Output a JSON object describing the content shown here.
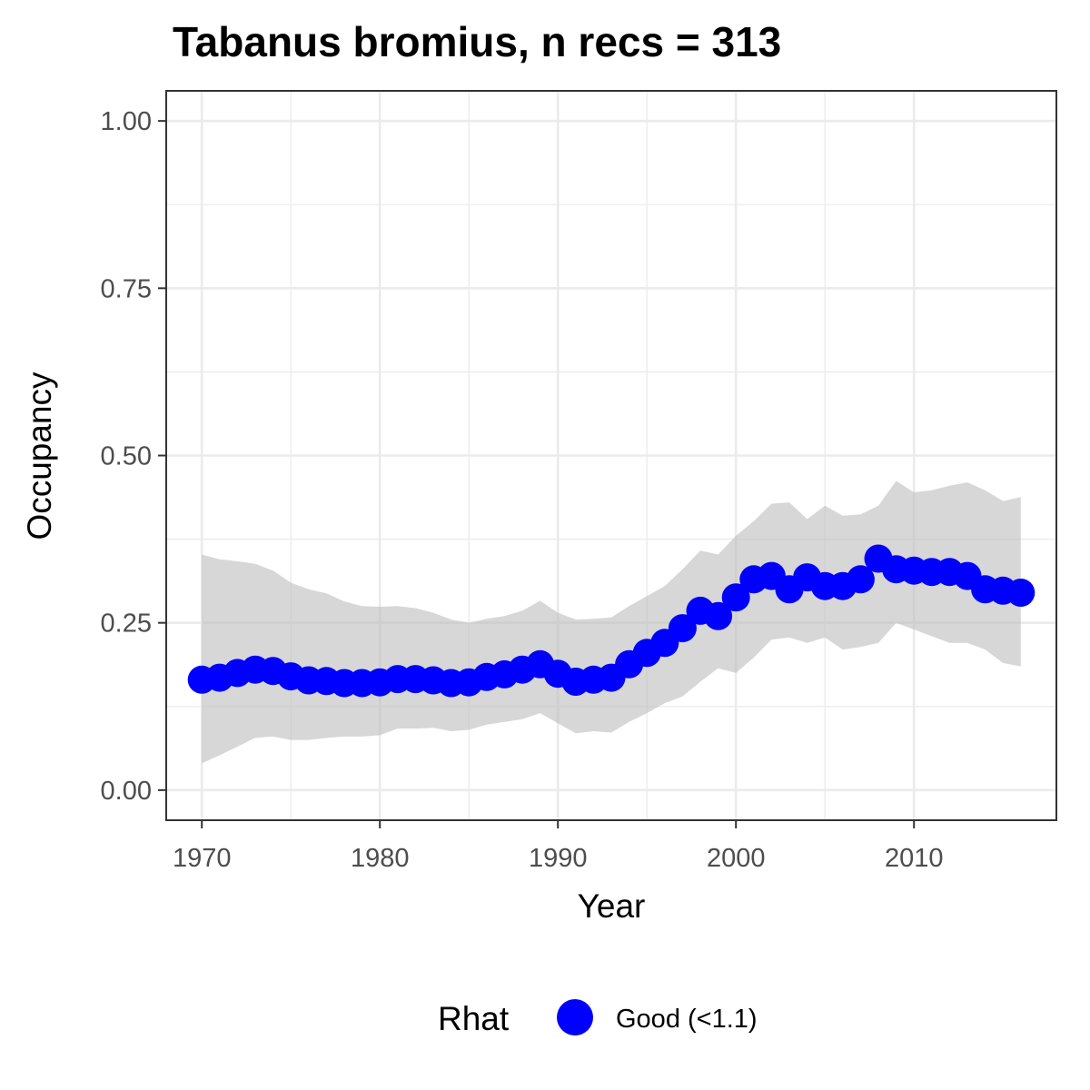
{
  "chart_data": {
    "type": "line",
    "title": "Tabanus bromius, n recs = 313",
    "xlabel": "Year",
    "ylabel": "Occupancy",
    "xlim": [
      1968,
      2018
    ],
    "ylim": [
      -0.045,
      1.045
    ],
    "x_ticks": [
      1970,
      1980,
      1990,
      2000,
      2010
    ],
    "x_tick_labels": [
      "1970",
      "1980",
      "1990",
      "2000",
      "2010"
    ],
    "y_ticks": [
      0,
      0.25,
      0.5,
      0.75,
      1
    ],
    "y_tick_labels": [
      "0.00",
      "0.25",
      "0.50",
      "0.75",
      "1.00"
    ],
    "grid": true,
    "legend": {
      "placement": "bottom",
      "title": "Rhat",
      "entries": [
        {
          "label": "Good (<1.1)",
          "color": "#0000ff"
        }
      ]
    },
    "colors": {
      "points": "#0000ff",
      "ribbon": "#bebebe",
      "grid": "#ebebeb",
      "panel_border": "#333333"
    },
    "x": [
      1970,
      1971,
      1972,
      1973,
      1974,
      1975,
      1976,
      1977,
      1978,
      1979,
      1980,
      1981,
      1982,
      1983,
      1984,
      1985,
      1986,
      1987,
      1988,
      1989,
      1990,
      1991,
      1992,
      1993,
      1994,
      1995,
      1996,
      1997,
      1998,
      1999,
      2000,
      2001,
      2002,
      2003,
      2004,
      2005,
      2006,
      2007,
      2008,
      2009,
      2010,
      2011,
      2012,
      2013,
      2014,
      2015,
      2016
    ],
    "series": [
      {
        "values": [
          0.165,
          0.168,
          0.175,
          0.18,
          0.178,
          0.17,
          0.164,
          0.163,
          0.16,
          0.16,
          0.161,
          0.166,
          0.166,
          0.164,
          0.16,
          0.161,
          0.169,
          0.173,
          0.18,
          0.188,
          0.174,
          0.162,
          0.165,
          0.168,
          0.188,
          0.205,
          0.22,
          0.242,
          0.268,
          0.26,
          0.288,
          0.315,
          0.32,
          0.3,
          0.318,
          0.305,
          0.305,
          0.315,
          0.346,
          0.33,
          0.328,
          0.326,
          0.326,
          0.32,
          0.3,
          0.298,
          0.295
        ],
        "lower": [
          0.04,
          0.052,
          0.065,
          0.078,
          0.08,
          0.075,
          0.075,
          0.078,
          0.08,
          0.08,
          0.082,
          0.092,
          0.092,
          0.093,
          0.088,
          0.09,
          0.098,
          0.102,
          0.106,
          0.115,
          0.1,
          0.085,
          0.088,
          0.086,
          0.102,
          0.115,
          0.13,
          0.14,
          0.162,
          0.182,
          0.175,
          0.198,
          0.225,
          0.228,
          0.22,
          0.228,
          0.21,
          0.214,
          0.22,
          0.25,
          0.24,
          0.23,
          0.22,
          0.22,
          0.21,
          0.19,
          0.185
        ],
        "upper": [
          0.352,
          0.345,
          0.342,
          0.338,
          0.328,
          0.31,
          0.3,
          0.294,
          0.282,
          0.275,
          0.274,
          0.275,
          0.272,
          0.265,
          0.255,
          0.25,
          0.256,
          0.26,
          0.268,
          0.283,
          0.265,
          0.255,
          0.256,
          0.258,
          0.275,
          0.29,
          0.305,
          0.33,
          0.358,
          0.352,
          0.38,
          0.402,
          0.428,
          0.43,
          0.405,
          0.425,
          0.41,
          0.412,
          0.425,
          0.462,
          0.445,
          0.448,
          0.455,
          0.46,
          0.448,
          0.432,
          0.438
        ]
      }
    ]
  }
}
